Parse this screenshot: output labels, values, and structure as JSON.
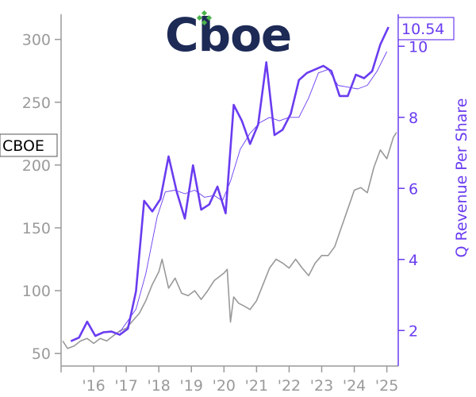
{
  "chart_data": {
    "type": "line",
    "logo": "Cboe",
    "ticker": "CBOE",
    "last_value_label": "10.54",
    "ylabel_right": "Q Revenue Per Share",
    "x_tick_labels": [
      "'16",
      "'17",
      "'18",
      "'19",
      "'20",
      "'21",
      "'22",
      "'23",
      "'24",
      "'25"
    ],
    "x_ticks": [
      2016,
      2017,
      2018,
      2019,
      2020,
      2021,
      2022,
      2023,
      2024,
      2025
    ],
    "xlim": [
      2015.0,
      2025.35
    ],
    "left_axis": {
      "ylim": [
        40,
        320
      ],
      "ticks": [
        50,
        100,
        150,
        200,
        250,
        300
      ]
    },
    "right_axis": {
      "ylim": [
        1.0,
        10.9
      ],
      "ticks": [
        2,
        4,
        6,
        8,
        10
      ]
    },
    "colors": {
      "price": "#999999",
      "revenue": "#6a3cf0",
      "axis": "#9a9a9a"
    },
    "series": [
      {
        "axis": "left",
        "points": [
          [
            2015.05,
            60
          ],
          [
            2015.2,
            54
          ],
          [
            2015.4,
            56
          ],
          [
            2015.6,
            60
          ],
          [
            2015.8,
            62
          ],
          [
            2016.0,
            58
          ],
          [
            2016.2,
            62
          ],
          [
            2016.4,
            60
          ],
          [
            2016.6,
            64
          ],
          [
            2016.8,
            68
          ],
          [
            2017.0,
            70
          ],
          [
            2017.2,
            76
          ],
          [
            2017.4,
            82
          ],
          [
            2017.6,
            92
          ],
          [
            2017.8,
            105
          ],
          [
            2018.0,
            115
          ],
          [
            2018.1,
            125
          ],
          [
            2018.3,
            102
          ],
          [
            2018.5,
            110
          ],
          [
            2018.7,
            98
          ],
          [
            2018.9,
            96
          ],
          [
            2019.1,
            100
          ],
          [
            2019.3,
            93
          ],
          [
            2019.5,
            100
          ],
          [
            2019.7,
            108
          ],
          [
            2019.9,
            112
          ],
          [
            2020.0,
            114
          ],
          [
            2020.1,
            117
          ],
          [
            2020.2,
            75
          ],
          [
            2020.3,
            95
          ],
          [
            2020.45,
            90
          ],
          [
            2020.6,
            88
          ],
          [
            2020.8,
            85
          ],
          [
            2021.0,
            92
          ],
          [
            2021.2,
            105
          ],
          [
            2021.4,
            118
          ],
          [
            2021.6,
            125
          ],
          [
            2021.8,
            122
          ],
          [
            2022.0,
            118
          ],
          [
            2022.2,
            125
          ],
          [
            2022.4,
            118
          ],
          [
            2022.6,
            112
          ],
          [
            2022.8,
            122
          ],
          [
            2023.0,
            128
          ],
          [
            2023.2,
            128
          ],
          [
            2023.4,
            135
          ],
          [
            2023.6,
            150
          ],
          [
            2023.8,
            165
          ],
          [
            2024.0,
            180
          ],
          [
            2024.2,
            182
          ],
          [
            2024.4,
            178
          ],
          [
            2024.6,
            198
          ],
          [
            2024.8,
            212
          ],
          [
            2025.0,
            205
          ],
          [
            2025.2,
            222
          ],
          [
            2025.3,
            226
          ]
        ]
      },
      {
        "axis": "right",
        "points": [
          [
            2015.3,
            1.7
          ],
          [
            2015.55,
            1.8
          ],
          [
            2015.8,
            2.25
          ],
          [
            2016.05,
            1.85
          ],
          [
            2016.3,
            1.95
          ],
          [
            2016.55,
            1.97
          ],
          [
            2016.8,
            1.88
          ],
          [
            2017.05,
            2.05
          ],
          [
            2017.3,
            3.1
          ],
          [
            2017.55,
            5.65
          ],
          [
            2017.8,
            5.35
          ],
          [
            2018.05,
            5.7
          ],
          [
            2018.3,
            6.9
          ],
          [
            2018.55,
            5.9
          ],
          [
            2018.8,
            5.15
          ],
          [
            2019.05,
            6.65
          ],
          [
            2019.3,
            5.4
          ],
          [
            2019.55,
            5.55
          ],
          [
            2019.8,
            6.05
          ],
          [
            2020.05,
            5.3
          ],
          [
            2020.3,
            8.35
          ],
          [
            2020.55,
            7.9
          ],
          [
            2020.8,
            7.25
          ],
          [
            2021.05,
            7.8
          ],
          [
            2021.3,
            9.55
          ],
          [
            2021.55,
            7.5
          ],
          [
            2021.8,
            7.65
          ],
          [
            2022.05,
            8.1
          ],
          [
            2022.3,
            9.05
          ],
          [
            2022.55,
            9.25
          ],
          [
            2022.8,
            9.35
          ],
          [
            2023.05,
            9.45
          ],
          [
            2023.3,
            9.3
          ],
          [
            2023.55,
            8.6
          ],
          [
            2023.8,
            8.6
          ],
          [
            2024.05,
            9.2
          ],
          [
            2024.3,
            9.1
          ],
          [
            2024.55,
            9.3
          ],
          [
            2024.8,
            10.05
          ],
          [
            2025.05,
            10.54
          ]
        ]
      },
      {
        "axis": "right",
        "points": [
          [
            2016.8,
            1.95
          ],
          [
            2017.3,
            2.6
          ],
          [
            2017.6,
            3.6
          ],
          [
            2017.95,
            5.2
          ],
          [
            2018.2,
            5.9
          ],
          [
            2018.5,
            5.95
          ],
          [
            2018.8,
            5.85
          ],
          [
            2019.1,
            5.95
          ],
          [
            2019.4,
            5.75
          ],
          [
            2019.7,
            5.8
          ],
          [
            2019.95,
            5.65
          ],
          [
            2020.2,
            6.2
          ],
          [
            2020.5,
            7.1
          ],
          [
            2020.8,
            7.55
          ],
          [
            2021.1,
            7.85
          ],
          [
            2021.4,
            8.0
          ],
          [
            2021.7,
            7.9
          ],
          [
            2022.0,
            8.0
          ],
          [
            2022.3,
            8.0
          ],
          [
            2022.6,
            8.55
          ],
          [
            2022.9,
            9.25
          ],
          [
            2023.2,
            9.35
          ],
          [
            2023.5,
            8.9
          ],
          [
            2023.8,
            8.85
          ],
          [
            2024.1,
            8.8
          ],
          [
            2024.4,
            8.9
          ],
          [
            2024.7,
            9.3
          ],
          [
            2025.0,
            9.85
          ]
        ]
      }
    ]
  }
}
